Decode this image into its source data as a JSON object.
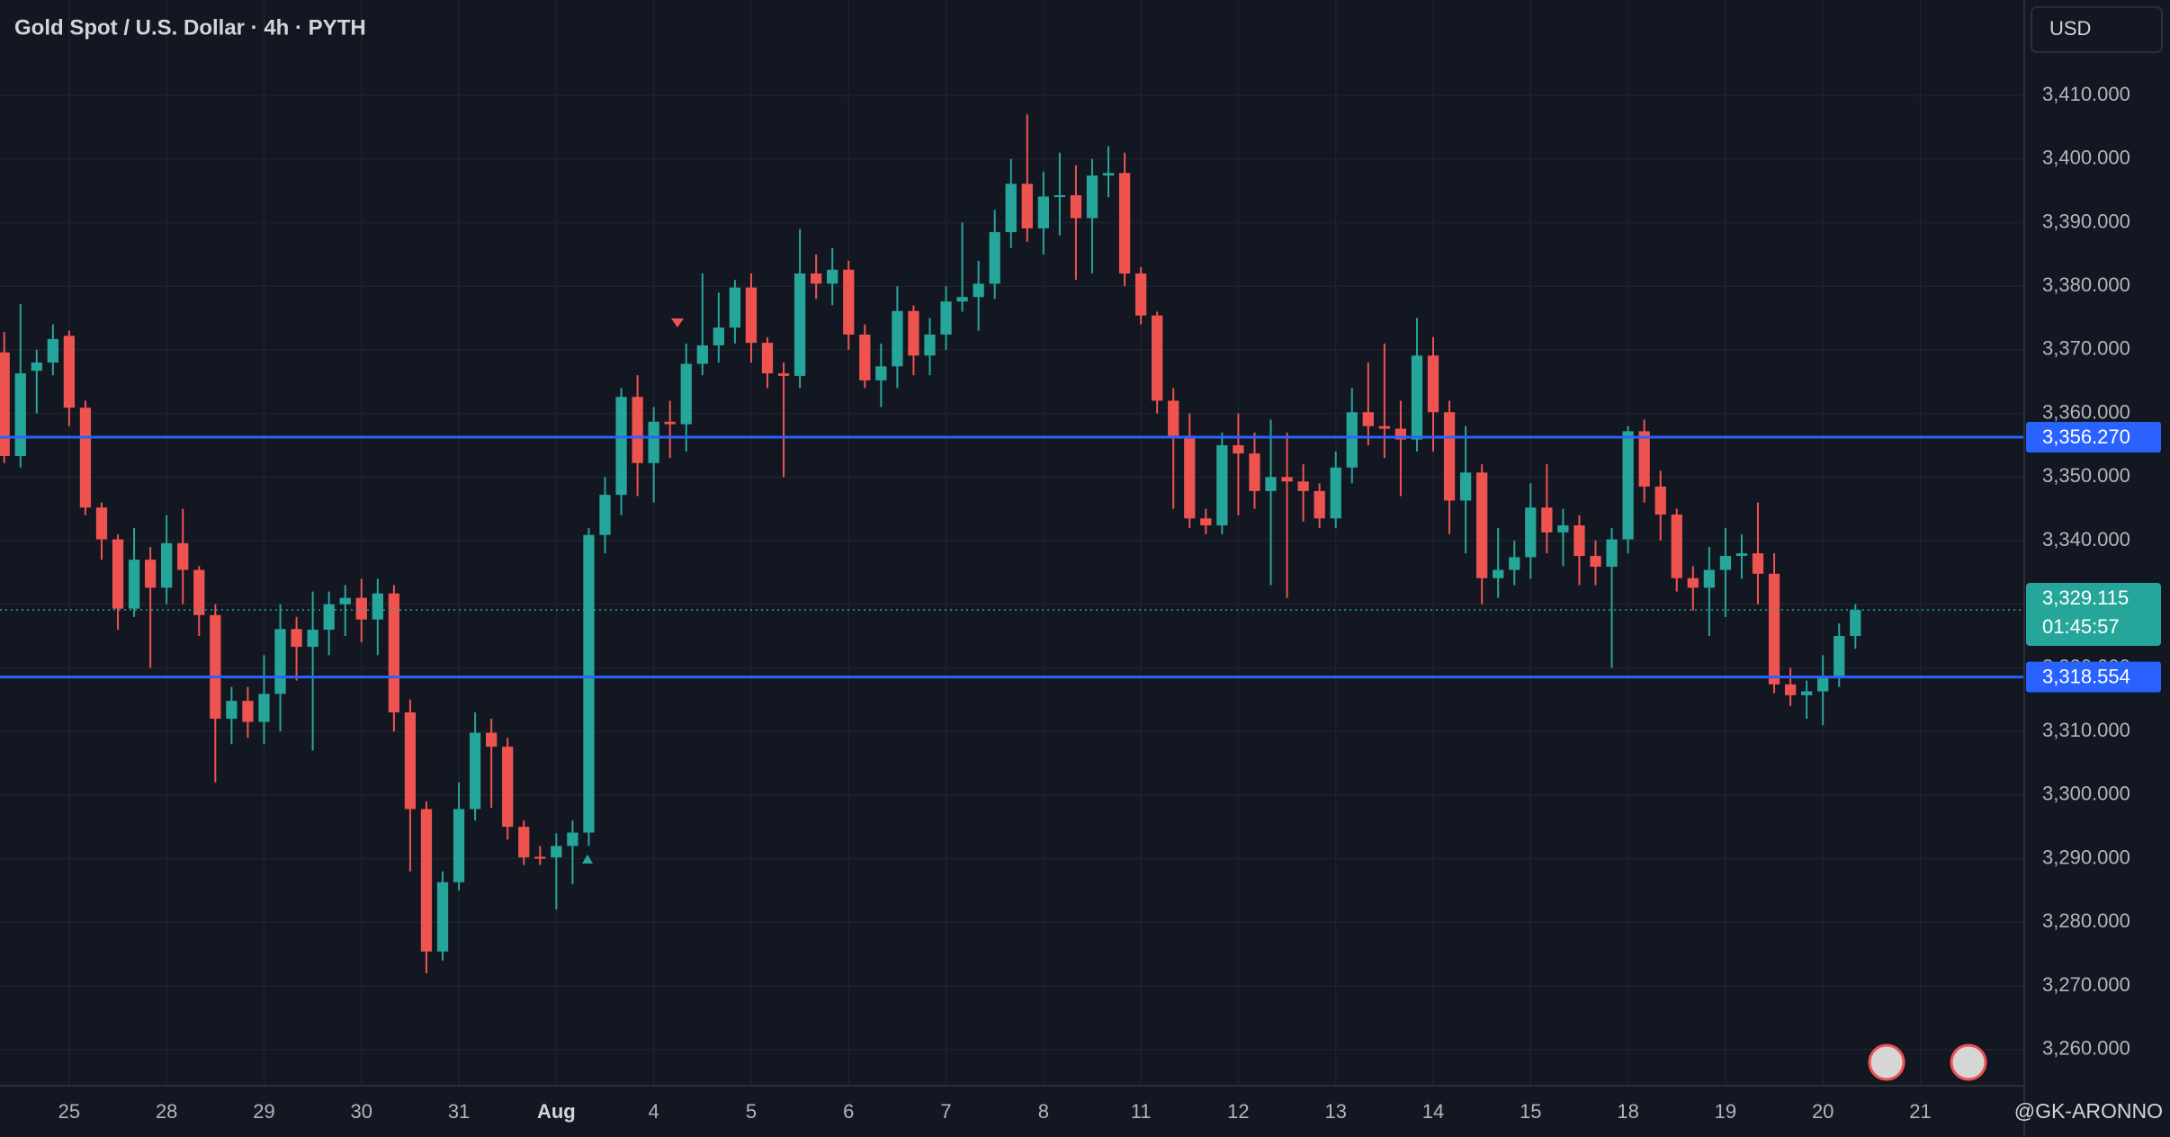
{
  "chart_data": {
    "type": "candlestick",
    "title": "Gold Spot / U.S. Dollar · 4h · PYTH",
    "currency": "USD",
    "watermark": "@GK-ARONNO",
    "up_color": "#26a69a",
    "down_color": "#ef5350",
    "grid": true,
    "xlim": [
      -0.26,
      124.4
    ],
    "ylim": [
      3254.3,
      3425
    ],
    "xticks": [
      {
        "value": 4,
        "label": "25"
      },
      {
        "value": 10,
        "label": "28"
      },
      {
        "value": 16,
        "label": "29"
      },
      {
        "value": 22,
        "label": "30"
      },
      {
        "value": 28,
        "label": "31"
      },
      {
        "value": 34,
        "label": "Aug"
      },
      {
        "value": 40,
        "label": "4"
      },
      {
        "value": 46,
        "label": "5"
      },
      {
        "value": 52,
        "label": "6"
      },
      {
        "value": 58,
        "label": "7"
      },
      {
        "value": 64,
        "label": "8"
      },
      {
        "value": 70,
        "label": "11"
      },
      {
        "value": 76,
        "label": "12"
      },
      {
        "value": 82,
        "label": "13"
      },
      {
        "value": 88,
        "label": "14"
      },
      {
        "value": 94,
        "label": "15"
      },
      {
        "value": 100,
        "label": "18"
      },
      {
        "value": 106,
        "label": "19"
      },
      {
        "value": 112,
        "label": "20"
      },
      {
        "value": 118,
        "label": "21"
      }
    ],
    "yticks": [
      {
        "value": 3260,
        "label": "3,260.000"
      },
      {
        "value": 3270,
        "label": "3,270.000"
      },
      {
        "value": 3280,
        "label": "3,280.000"
      },
      {
        "value": 3290,
        "label": "3,290.000"
      },
      {
        "value": 3300,
        "label": "3,300.000"
      },
      {
        "value": 3310,
        "label": "3,310.000"
      },
      {
        "value": 3320,
        "label": "3,320.000"
      },
      {
        "value": 3330,
        "label": "3,330.000"
      },
      {
        "value": 3340,
        "label": "3,340.000"
      },
      {
        "value": 3350,
        "label": "3,350.000"
      },
      {
        "value": 3360,
        "label": "3,360.000"
      },
      {
        "value": 3370,
        "label": "3,370.000"
      },
      {
        "value": 3380,
        "label": "3,380.000"
      },
      {
        "value": 3390,
        "label": "3,390.000"
      },
      {
        "value": 3400,
        "label": "3,400.000"
      },
      {
        "value": 3410,
        "label": "3,410.000"
      }
    ],
    "price_lines": [
      {
        "value": 3356.27,
        "label": "3,356.270",
        "color": "#2962ff"
      },
      {
        "value": 3318.554,
        "label": "3,318.554",
        "color": "#2962ff"
      }
    ],
    "last_price": {
      "value": 3329.115,
      "label": "3,329.115",
      "countdown": "01:45:57",
      "color": "#26a69a"
    },
    "open": [
      3369.6,
      3353.3,
      3366.7,
      3368,
      3372.2,
      3360.9,
      3345.2,
      3340.2,
      3329.3,
      3337,
      3332.6,
      3339.6,
      3335.4,
      3328.3,
      3312,
      3314.8,
      3311.5,
      3315.9,
      3326.1,
      3323.3,
      3326,
      3330,
      3331,
      3327.6,
      3331.7,
      3313,
      3297.8,
      3275.4,
      3286.3,
      3297.8,
      3309.8,
      3307.6,
      3295,
      3290.3,
      3290.2,
      3292,
      3294.1,
      3340.9,
      3347.2,
      3362.6,
      3352.2,
      3358.7,
      3358.3,
      3367.8,
      3370.7,
      3373.5,
      3379.8,
      3371.1,
      3366.3,
      3365.9,
      3382,
      3380.4,
      3382.6,
      3372.4,
      3365.2,
      3367.4,
      3376.1,
      3369.1,
      3372.4,
      3377.6,
      3378.3,
      3380.4,
      3388.5,
      3396.1,
      3389.1,
      3394.1,
      3394.3,
      3390.7,
      3397.4,
      3397.8,
      3382,
      3375.4,
      3362,
      3356.5,
      3343.5,
      3342.4,
      3355,
      3353.7,
      3347.8,
      3350,
      3349.3,
      3347.8,
      3343.5,
      3351.5,
      3360.2,
      3358,
      3357.6,
      3355.9,
      3369.1,
      3360.2,
      3346.3,
      3350.7,
      3334.1,
      3335.4,
      3337.4,
      3345.2,
      3341.3,
      3342.4,
      3337.6,
      3335.9,
      3340.2,
      3357.2,
      3348.5,
      3344.1,
      3334.1,
      3332.6,
      3335.4,
      3337.6,
      3338,
      3334.8,
      3317.4,
      3315.7,
      3316.3,
      3318.5,
      3325
    ],
    "high": [
      3372.8,
      3377.2,
      3370,
      3374,
      3373,
      3362,
      3346,
      3341,
      3342,
      3339,
      3344,
      3345,
      3336,
      3330,
      3317,
      3317,
      3322,
      3330,
      3328,
      3332,
      3332,
      3333,
      3334,
      3334,
      3333,
      3315,
      3299,
      3288,
      3302,
      3313,
      3312,
      3309,
      3296,
      3292,
      3294,
      3296,
      3342,
      3350,
      3364,
      3366,
      3361,
      3362,
      3371,
      3382,
      3379,
      3381,
      3382,
      3372,
      3368,
      3389,
      3385,
      3386,
      3384,
      3374,
      3371,
      3380,
      3377,
      3375,
      3380,
      3390,
      3384,
      3392,
      3400,
      3407,
      3398,
      3401,
      3399,
      3400,
      3402,
      3401,
      3383,
      3376,
      3364,
      3360,
      3345,
      3357,
      3360,
      3357,
      3359,
      3357,
      3352,
      3349,
      3354,
      3364,
      3368,
      3371,
      3362,
      3375,
      3372,
      3362,
      3358,
      3352,
      3342,
      3340,
      3349,
      3352,
      3345,
      3344,
      3340,
      3342,
      3358,
      3359,
      3351,
      3345,
      3336,
      3339,
      3342,
      3341,
      3346,
      3338,
      3320,
      3318,
      3322,
      3327,
      3330
    ],
    "low": [
      3352.2,
      3351.5,
      3360,
      3366,
      3358,
      3344,
      3337,
      3326,
      3328,
      3320,
      3330,
      3330,
      3325,
      3302,
      3308,
      3309,
      3308,
      3310,
      3318,
      3307,
      3322,
      3325,
      3324,
      3322,
      3310,
      3288,
      3272,
      3274,
      3285,
      3296,
      3298,
      3293,
      3289,
      3289,
      3282,
      3286,
      3292,
      3338,
      3344,
      3347,
      3346,
      3353,
      3354,
      3366,
      3368,
      3371,
      3368,
      3364,
      3350,
      3364,
      3378,
      3377,
      3370,
      3364,
      3361,
      3364,
      3366,
      3366,
      3370,
      3376,
      3373,
      3378,
      3386,
      3387,
      3385,
      3388,
      3381,
      3382,
      3394,
      3380,
      3374,
      3360,
      3345,
      3342,
      3341,
      3341,
      3344,
      3345,
      3333,
      3331,
      3343,
      3342,
      3342,
      3349,
      3355,
      3353,
      3347,
      3354,
      3354,
      3341,
      3338,
      3330,
      3331,
      3333,
      3334,
      3338,
      3336,
      3333,
      3333,
      3320,
      3338,
      3346,
      3340,
      3332,
      3329,
      3325,
      3328,
      3334,
      3330,
      3316,
      3314,
      3312,
      3311,
      3317,
      3323
    ],
    "close": [
      3353.3,
      3366.3,
      3368,
      3371.7,
      3360.9,
      3345.2,
      3340.2,
      3329.3,
      3337,
      3332.6,
      3339.6,
      3335.4,
      3328.3,
      3312,
      3314.8,
      3311.5,
      3315.9,
      3326.1,
      3323.3,
      3326,
      3330,
      3331,
      3327.6,
      3331.7,
      3313,
      3297.8,
      3275.4,
      3286.3,
      3297.8,
      3309.8,
      3307.6,
      3295,
      3290.2,
      3290,
      3292,
      3294.1,
      3340.9,
      3347.2,
      3362.6,
      3352.2,
      3358.7,
      3358.3,
      3367.8,
      3370.7,
      3373.5,
      3379.8,
      3371.1,
      3366.3,
      3365.9,
      3382,
      3380.4,
      3382.6,
      3372.4,
      3365.2,
      3367.4,
      3376.1,
      3369.1,
      3372.4,
      3377.6,
      3378.3,
      3380.4,
      3388.5,
      3396.1,
      3389.1,
      3394.1,
      3394.3,
      3390.7,
      3397.4,
      3397.8,
      3382,
      3375.4,
      3362,
      3356.5,
      3343.5,
      3342.4,
      3355,
      3353.7,
      3347.8,
      3350,
      3349.3,
      3347.8,
      3343.5,
      3351.5,
      3360.2,
      3358,
      3357.6,
      3355.9,
      3369.1,
      3360.2,
      3346.3,
      3350.7,
      3334.1,
      3335.4,
      3337.4,
      3345.2,
      3341.3,
      3342.4,
      3337.6,
      3335.9,
      3340.2,
      3357.2,
      3348.5,
      3344.1,
      3334.1,
      3332.6,
      3335.4,
      3337.6,
      3338,
      3334.8,
      3317.4,
      3315.7,
      3316.3,
      3318.5,
      3325,
      3329.1
    ]
  }
}
